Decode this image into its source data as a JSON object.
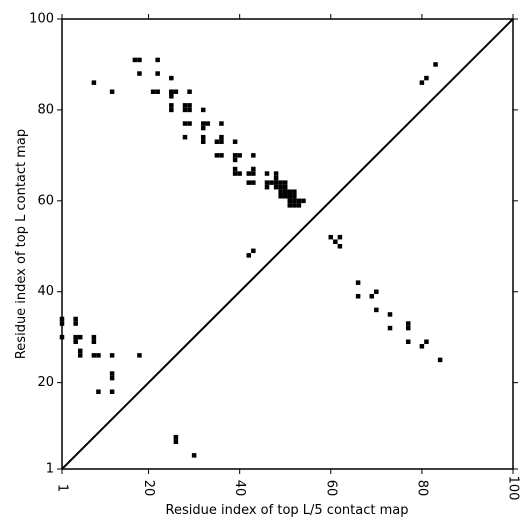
{
  "chart_data": {
    "type": "scatter",
    "xlabel": "Residue index of top L/5 contact map",
    "ylabel": "Residue index of top L contact map",
    "xlim": [
      1,
      100
    ],
    "ylim": [
      1,
      100
    ],
    "xticks": [
      1,
      20,
      40,
      60,
      80,
      100
    ],
    "yticks": [
      1,
      20,
      40,
      60,
      80,
      100
    ],
    "xtick_labels": [
      "1",
      "20",
      "40",
      "60",
      "80",
      "100"
    ],
    "ytick_labels": [
      "1",
      "20",
      "40",
      "60",
      "80",
      "100"
    ],
    "diagonal": true,
    "marker_color": "#000000",
    "upper_points": [
      [
        17,
        91
      ],
      [
        18,
        91
      ],
      [
        22,
        91
      ],
      [
        18,
        88
      ],
      [
        22,
        88
      ],
      [
        8,
        86
      ],
      [
        12,
        84
      ],
      [
        21,
        84
      ],
      [
        22,
        84
      ],
      [
        25,
        87
      ],
      [
        25,
        84
      ],
      [
        26,
        84
      ],
      [
        25,
        83
      ],
      [
        29,
        84
      ],
      [
        25,
        81
      ],
      [
        25,
        80
      ],
      [
        28,
        81
      ],
      [
        29,
        81
      ],
      [
        28,
        80
      ],
      [
        29,
        80
      ],
      [
        32,
        80
      ],
      [
        28,
        77
      ],
      [
        29,
        77
      ],
      [
        32,
        77
      ],
      [
        33,
        77
      ],
      [
        36,
        77
      ],
      [
        32,
        76
      ],
      [
        28,
        74
      ],
      [
        32,
        74
      ],
      [
        32,
        73
      ],
      [
        35,
        73
      ],
      [
        36,
        74
      ],
      [
        36,
        73
      ],
      [
        39,
        73
      ],
      [
        35,
        70
      ],
      [
        36,
        70
      ],
      [
        39,
        70
      ],
      [
        40,
        70
      ],
      [
        43,
        70
      ],
      [
        39,
        69
      ],
      [
        39,
        67
      ],
      [
        39,
        66
      ],
      [
        40,
        66
      ],
      [
        42,
        66
      ],
      [
        43,
        66
      ],
      [
        43,
        67
      ],
      [
        46,
        66
      ],
      [
        48,
        66
      ],
      [
        48,
        65
      ],
      [
        42,
        64
      ],
      [
        43,
        64
      ],
      [
        46,
        64
      ],
      [
        47,
        64
      ],
      [
        48,
        64
      ],
      [
        49,
        64
      ],
      [
        50,
        64
      ],
      [
        46,
        63
      ],
      [
        48,
        63
      ],
      [
        49,
        63
      ],
      [
        50,
        63
      ],
      [
        49,
        62
      ],
      [
        50,
        62
      ],
      [
        51,
        62
      ],
      [
        52,
        62
      ],
      [
        49,
        61
      ],
      [
        50,
        61
      ],
      [
        51,
        61
      ],
      [
        52,
        61
      ],
      [
        51,
        60
      ],
      [
        52,
        60
      ],
      [
        53,
        60
      ],
      [
        54,
        60
      ],
      [
        51,
        59
      ],
      [
        52,
        59
      ],
      [
        53,
        59
      ],
      [
        42,
        48
      ],
      [
        43,
        49
      ],
      [
        80,
        86
      ],
      [
        81,
        87
      ],
      [
        83,
        90
      ]
    ],
    "lower_points": [
      [
        1,
        34
      ],
      [
        1,
        33
      ],
      [
        1,
        30
      ],
      [
        4,
        34
      ],
      [
        4,
        33
      ],
      [
        4,
        30
      ],
      [
        5,
        30
      ],
      [
        4,
        29
      ],
      [
        5,
        27
      ],
      [
        5,
        26
      ],
      [
        8,
        30
      ],
      [
        8,
        29
      ],
      [
        8,
        26
      ],
      [
        9,
        26
      ],
      [
        12,
        26
      ],
      [
        18,
        26
      ],
      [
        12,
        22
      ],
      [
        12,
        21
      ],
      [
        9,
        18
      ],
      [
        12,
        18
      ],
      [
        26,
        8
      ],
      [
        26,
        7
      ],
      [
        30,
        4
      ],
      [
        60,
        52
      ],
      [
        62,
        52
      ],
      [
        61,
        51
      ],
      [
        62,
        50
      ],
      [
        66,
        42
      ],
      [
        66,
        39
      ],
      [
        69,
        39
      ],
      [
        70,
        40
      ],
      [
        70,
        36
      ],
      [
        73,
        35
      ],
      [
        73,
        32
      ],
      [
        77,
        33
      ],
      [
        77,
        32
      ],
      [
        77,
        29
      ],
      [
        80,
        28
      ],
      [
        81,
        29
      ],
      [
        84,
        25
      ]
    ]
  }
}
